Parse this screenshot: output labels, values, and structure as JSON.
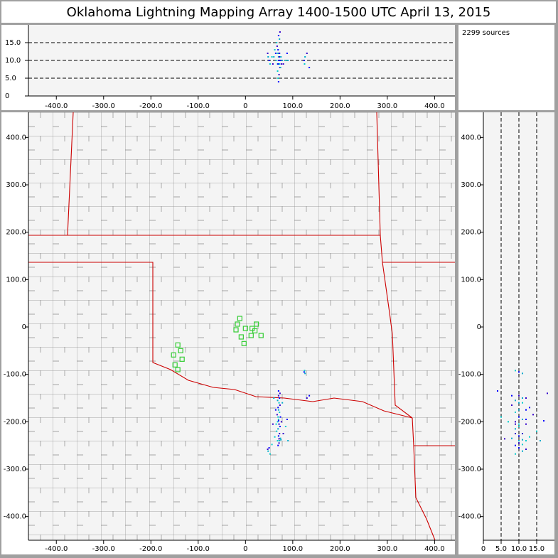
{
  "chart_data": {
    "type": "scatter",
    "title": "Oklahoma Lightning Mapping Array   1400-1500 UTC  April 13, 2015",
    "sources_label": "2299 sources",
    "xlim": [
      -459,
      443
    ],
    "ylim": [
      -450,
      453
    ],
    "alt_lim": [
      0,
      20
    ],
    "xticks": [
      {
        "value": -400,
        "label": "-400.0"
      },
      {
        "value": -300,
        "label": "-300.0"
      },
      {
        "value": -200,
        "label": "-200.0"
      },
      {
        "value": -100,
        "label": "-100.0"
      },
      0,
      {
        "value": 100,
        "label": "100.0"
      },
      {
        "value": 200,
        "label": "200.0"
      },
      {
        "value": 300,
        "label": "300.0"
      },
      {
        "value": 400,
        "label": "400.0"
      }
    ],
    "yticks": [
      {
        "value": -400,
        "label": "-400.0"
      },
      {
        "value": -300,
        "label": "-300.0"
      },
      {
        "value": -200,
        "label": "-200.0"
      },
      {
        "value": -100,
        "label": "-100.0"
      },
      0,
      {
        "value": 100,
        "label": "100.0"
      },
      {
        "value": 200,
        "label": "200.0"
      },
      {
        "value": 300,
        "label": "300.0"
      },
      {
        "value": 400,
        "label": "400.0"
      }
    ],
    "alt_ticks": [
      0,
      {
        "value": 5,
        "label": "5.0"
      },
      {
        "value": 10,
        "label": "10.0"
      },
      {
        "value": 15,
        "label": "15.0"
      }
    ],
    "sources": {
      "x": [
        70,
        72,
        68,
        71,
        73,
        69,
        70,
        72,
        67,
        74,
        70,
        68,
        71,
        73,
        69,
        66,
        72,
        70,
        74,
        68,
        71,
        69,
        75,
        65,
        76,
        64,
        78,
        62,
        80,
        70,
        72,
        69,
        71,
        50,
        48,
        52,
        47,
        124,
        126,
        125,
        130,
        135,
        60,
        85,
        58,
        88,
        90,
        56,
        73,
        70
      ],
      "y": [
        -145,
        -150,
        -155,
        -160,
        -165,
        -170,
        -175,
        -180,
        -185,
        -190,
        -195,
        -200,
        -205,
        -210,
        -215,
        -220,
        -225,
        -230,
        -235,
        -240,
        -245,
        -250,
        -238,
        -205,
        -200,
        -175,
        -160,
        -232,
        -225,
        -198,
        -240,
        -190,
        -236,
        -255,
        -262,
        -268,
        -258,
        -95,
        -98,
        -92,
        -150,
        -145,
        -150,
        -210,
        -205,
        -195,
        -240,
        -248,
        -140,
        -135
      ],
      "altitude": [
        10,
        12,
        9,
        11,
        8,
        13,
        10,
        9,
        14,
        10,
        11,
        7,
        12,
        10,
        9,
        15,
        11,
        10,
        8,
        12,
        10,
        9,
        11,
        10,
        9,
        12,
        10,
        13,
        9,
        17,
        16,
        5,
        6,
        10,
        11,
        9,
        12,
        10,
        11,
        9,
        12,
        8,
        11,
        10,
        9,
        12,
        10,
        11,
        18,
        4
      ],
      "colors": [
        "#3300cc",
        "#0000ff",
        "#00aacc",
        "#00cccc",
        "#3300cc",
        "#0000ff",
        "#00aacc",
        "#00cccc",
        "#3300cc",
        "#0000ff",
        "#00aacc",
        "#00cccc",
        "#3300cc",
        "#0000ff",
        "#00aacc",
        "#00cccc",
        "#3300cc",
        "#0000ff",
        "#00aacc",
        "#00cccc",
        "#3300cc",
        "#0000ff",
        "#00aacc",
        "#00cccc",
        "#3300cc",
        "#0000ff",
        "#00aacc",
        "#00cccc",
        "#3300cc",
        "#0000ff",
        "#00aacc",
        "#00cccc",
        "#3300cc",
        "#0000ff",
        "#00aacc",
        "#00cccc",
        "#3300cc",
        "#0000ff",
        "#00aacc",
        "#00cccc",
        "#3300cc",
        "#0000ff",
        "#00aacc",
        "#00cccc",
        "#3300cc",
        "#0000ff",
        "#00aacc",
        "#00cccc",
        "#3300cc",
        "#0000ff"
      ]
    },
    "stations": {
      "x": [
        -12,
        -17,
        0,
        -20,
        14,
        23,
        20,
        -9,
        12,
        33,
        -3,
        -143,
        -137,
        -152,
        -134,
        -149,
        -143
      ],
      "y": [
        18,
        6,
        -3,
        -6,
        -3,
        6,
        -8,
        -21,
        -18,
        -18,
        -35,
        -38,
        -50,
        -59,
        -68,
        -80,
        -90
      ],
      "color": "#33cc33"
    }
  }
}
